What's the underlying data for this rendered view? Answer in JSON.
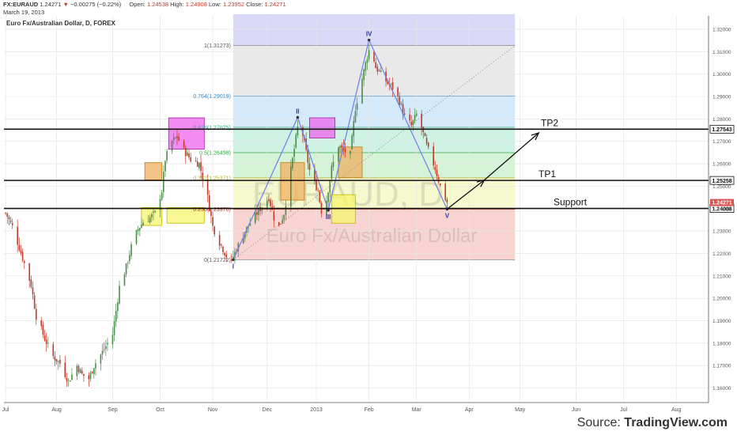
{
  "header": {
    "symbol": "FX:EURAUD",
    "last": "1.24271",
    "change_arrow": "▼",
    "change": "−0.00275 (−0.22%)",
    "open_label": "Open:",
    "open": "1.24538",
    "high_label": "High:",
    "high": "1.24908",
    "low_label": "Low:",
    "low": "1.23952",
    "close_label": "Close:",
    "close": "1.24271",
    "date": "March 19, 2013"
  },
  "footer": {
    "prefix": "Source: ",
    "brand": "TradingView.com"
  },
  "chart_data": {
    "type": "candlestick",
    "title": "Euro Fx/Australian Dollar, D, FOREX",
    "watermark_symbol": "EURAUD, D",
    "watermark_name": "Euro Fx/Australian Dollar",
    "ylim": [
      1.1535,
      1.326
    ],
    "xlim": [
      "2012-07-01",
      "2013-08-20"
    ],
    "y_ticks": [
      1.16,
      1.17,
      1.18,
      1.19,
      1.2,
      1.21,
      1.22,
      1.23,
      1.24,
      1.25,
      1.26,
      1.27,
      1.28,
      1.29,
      1.3,
      1.31,
      1.32
    ],
    "x_ticks": [
      {
        "label": "Jul",
        "date": "2012-07-02"
      },
      {
        "label": "Aug",
        "date": "2012-08-01"
      },
      {
        "label": "Sep",
        "date": "2012-09-03"
      },
      {
        "label": "Oct",
        "date": "2012-10-01"
      },
      {
        "label": "Nov",
        "date": "2012-11-01"
      },
      {
        "label": "Dec",
        "date": "2012-12-03"
      },
      {
        "label": "2013",
        "date": "2013-01-01"
      },
      {
        "label": "Feb",
        "date": "2013-02-01"
      },
      {
        "label": "Mar",
        "date": "2013-03-01"
      },
      {
        "label": "Apr",
        "date": "2013-04-01"
      },
      {
        "label": "May",
        "date": "2013-05-01"
      },
      {
        "label": "Jun",
        "date": "2013-06-03"
      },
      {
        "label": "Jul",
        "date": "2013-07-01"
      },
      {
        "label": "Aug",
        "date": "2013-08-01"
      }
    ],
    "price_path": [
      {
        "date": "2012-07-02",
        "value": 1.238
      },
      {
        "date": "2012-07-06",
        "value": 1.232
      },
      {
        "date": "2012-07-12",
        "value": 1.218
      },
      {
        "date": "2012-07-17",
        "value": 1.206
      },
      {
        "date": "2012-07-20",
        "value": 1.192
      },
      {
        "date": "2012-07-25",
        "value": 1.182
      },
      {
        "date": "2012-07-30",
        "value": 1.174
      },
      {
        "date": "2012-08-03",
        "value": 1.171
      },
      {
        "date": "2012-08-08",
        "value": 1.163
      },
      {
        "date": "2012-08-13",
        "value": 1.17
      },
      {
        "date": "2012-08-16",
        "value": 1.166
      },
      {
        "date": "2012-08-20",
        "value": 1.164
      },
      {
        "date": "2012-08-23",
        "value": 1.17
      },
      {
        "date": "2012-08-28",
        "value": 1.176
      },
      {
        "date": "2012-09-03",
        "value": 1.184
      },
      {
        "date": "2012-09-07",
        "value": 1.205
      },
      {
        "date": "2012-09-11",
        "value": 1.214
      },
      {
        "date": "2012-09-14",
        "value": 1.223
      },
      {
        "date": "2012-09-18",
        "value": 1.231
      },
      {
        "date": "2012-09-21",
        "value": 1.234
      },
      {
        "date": "2012-09-25",
        "value": 1.236
      },
      {
        "date": "2012-09-28",
        "value": 1.238
      },
      {
        "date": "2012-10-02",
        "value": 1.248
      },
      {
        "date": "2012-10-04",
        "value": 1.262
      },
      {
        "date": "2012-10-08",
        "value": 1.27
      },
      {
        "date": "2012-10-11",
        "value": 1.272
      },
      {
        "date": "2012-10-15",
        "value": 1.266
      },
      {
        "date": "2012-10-19",
        "value": 1.262
      },
      {
        "date": "2012-10-24",
        "value": 1.26
      },
      {
        "date": "2012-10-29",
        "value": 1.245
      },
      {
        "date": "2012-11-01",
        "value": 1.232
      },
      {
        "date": "2012-11-05",
        "value": 1.225
      },
      {
        "date": "2012-11-09",
        "value": 1.219
      },
      {
        "date": "2012-11-12",
        "value": 1.217
      },
      {
        "date": "2012-11-15",
        "value": 1.222
      },
      {
        "date": "2012-11-20",
        "value": 1.23
      },
      {
        "date": "2012-11-26",
        "value": 1.237
      },
      {
        "date": "2012-11-30",
        "value": 1.241
      },
      {
        "date": "2012-12-04",
        "value": 1.245
      },
      {
        "date": "2012-12-07",
        "value": 1.236
      },
      {
        "date": "2012-12-10",
        "value": 1.232
      },
      {
        "date": "2012-12-13",
        "value": 1.238
      },
      {
        "date": "2012-12-18",
        "value": 1.262
      },
      {
        "date": "2012-12-21",
        "value": 1.276
      },
      {
        "date": "2012-12-24",
        "value": 1.273
      },
      {
        "date": "2012-12-28",
        "value": 1.257
      },
      {
        "date": "2013-01-02",
        "value": 1.248
      },
      {
        "date": "2013-01-04",
        "value": 1.239
      },
      {
        "date": "2013-01-07",
        "value": 1.244
      },
      {
        "date": "2013-01-10",
        "value": 1.258
      },
      {
        "date": "2013-01-14",
        "value": 1.268
      },
      {
        "date": "2013-01-17",
        "value": 1.266
      },
      {
        "date": "2013-01-21",
        "value": 1.264
      },
      {
        "date": "2013-01-24",
        "value": 1.285
      },
      {
        "date": "2013-01-28",
        "value": 1.298
      },
      {
        "date": "2013-01-31",
        "value": 1.308
      },
      {
        "date": "2013-02-02",
        "value": 1.313
      },
      {
        "date": "2013-02-05",
        "value": 1.303
      },
      {
        "date": "2013-02-08",
        "value": 1.3
      },
      {
        "date": "2013-02-12",
        "value": 1.296
      },
      {
        "date": "2013-02-15",
        "value": 1.294
      },
      {
        "date": "2013-02-19",
        "value": 1.288
      },
      {
        "date": "2013-02-22",
        "value": 1.281
      },
      {
        "date": "2013-02-26",
        "value": 1.277
      },
      {
        "date": "2013-03-01",
        "value": 1.282
      },
      {
        "date": "2013-03-04",
        "value": 1.276
      },
      {
        "date": "2013-03-07",
        "value": 1.268
      },
      {
        "date": "2013-03-12",
        "value": 1.258
      },
      {
        "date": "2013-03-15",
        "value": 1.25
      },
      {
        "date": "2013-03-19",
        "value": 1.2427
      }
    ],
    "fibonacci": {
      "start": "2012-11-13",
      "end": "2013-04-28",
      "levels": [
        {
          "ratio": 0,
          "price": 1.21722,
          "label": "0(1.21722)"
        },
        {
          "ratio": 0.236,
          "price": 1.23976,
          "label": "0.236(1.23976)"
        },
        {
          "ratio": 0.382,
          "price": 1.25371,
          "label": "0.382(1.25371)"
        },
        {
          "ratio": 0.5,
          "price": 1.26498,
          "label": "0.5(1.26498)"
        },
        {
          "ratio": 0.618,
          "price": 1.27625,
          "label": "0.618(1.27625)"
        },
        {
          "ratio": 0.764,
          "price": 1.29019,
          "label": "0.764(1.29019)"
        },
        {
          "ratio": 1,
          "price": 1.31273,
          "label": "1(1.31273)"
        },
        {
          "ratio": 1.15,
          "price": 1.327,
          "label": ""
        }
      ],
      "band_colors": [
        "#f5c9c6",
        "#f4f7c2",
        "#c9f0cd",
        "#c2f0dd",
        "#c9e4f7",
        "#e3e3e3",
        "#cfcff5"
      ]
    },
    "horizontal_lines": [
      {
        "price": 1.27543,
        "label": "TP2",
        "axis_label": "1.27543"
      },
      {
        "price": 1.25258,
        "label": "TP1",
        "axis_label": "1.25258"
      },
      {
        "price": 1.24008,
        "label": "Support",
        "axis_label": "1.24008"
      }
    ],
    "last_price": {
      "price": 1.24271,
      "axis_label": "1.24271"
    },
    "wave_points": [
      {
        "label": "I",
        "date": "2012-11-13",
        "price": 1.2172
      },
      {
        "label": "II",
        "date": "2012-12-21",
        "price": 1.2807
      },
      {
        "label": "III",
        "date": "2013-01-08",
        "price": 1.2393
      },
      {
        "label": "IV",
        "date": "2013-02-01",
        "price": 1.3152
      },
      {
        "label": "V",
        "date": "2013-03-19",
        "price": 1.2398
      }
    ],
    "zones": [
      {
        "color": "yellow",
        "from": "2012-09-20",
        "to": "2012-10-02",
        "low": 1.2325,
        "high": 1.2405
      },
      {
        "color": "yellow",
        "from": "2012-10-05",
        "to": "2012-10-27",
        "low": 1.2335,
        "high": 1.2405
      },
      {
        "color": "orange",
        "from": "2012-09-22",
        "to": "2012-10-02",
        "low": 1.2528,
        "high": 1.2605
      },
      {
        "color": "magenta",
        "from": "2012-10-06",
        "to": "2012-10-27",
        "low": 1.2665,
        "high": 1.2805
      },
      {
        "color": "orange",
        "from": "2012-12-11",
        "to": "2012-12-25",
        "low": 1.2438,
        "high": 1.2605
      },
      {
        "color": "magenta",
        "from": "2012-12-28",
        "to": "2013-01-12",
        "low": 1.2715,
        "high": 1.2805
      },
      {
        "color": "yellow",
        "from": "2013-01-10",
        "to": "2013-01-24",
        "low": 1.2335,
        "high": 1.2462
      },
      {
        "color": "orange",
        "from": "2013-01-14",
        "to": "2013-01-28",
        "low": 1.2538,
        "high": 1.2675
      }
    ],
    "trend_line": {
      "from_date": "2012-11-13",
      "from_price": 1.2172,
      "to_date": "2013-04-28",
      "to_price": 1.3127
    },
    "arrows": [
      {
        "from_date": "2013-03-19",
        "from_price": 1.2398,
        "to_date": "2013-04-10",
        "to_price": 1.2528
      },
      {
        "from_date": "2013-04-10",
        "from_price": 1.2528,
        "to_date": "2013-05-12",
        "to_price": 1.2738
      }
    ],
    "colors": {
      "up": "#4a8c4a",
      "down": "#c0392b",
      "wave": "#6d7ee8",
      "axis_text": "#555555"
    }
  }
}
